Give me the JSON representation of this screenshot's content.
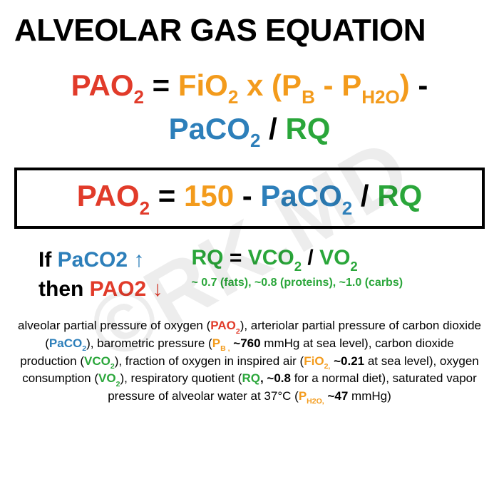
{
  "colors": {
    "red": "#e13b2a",
    "orange": "#f39b1c",
    "blue": "#2d7fba",
    "green": "#2aa63a",
    "black": "#000000",
    "background": "#ffffff",
    "watermark": "rgba(0,0,0,0.07)"
  },
  "watermark": "©RK.MD",
  "title": "ALVEOLAR GAS EQUATION",
  "equation_full": {
    "pao2": {
      "text": "PAO",
      "sub": "2",
      "color": "red"
    },
    "eq": {
      "text": " = ",
      "color": "black"
    },
    "fio2": {
      "text": "FiO",
      "sub": "2",
      "color": "orange"
    },
    "mult": {
      "text": " x ",
      "color": "orange"
    },
    "paren_open": {
      "text": "(",
      "color": "orange"
    },
    "pb": {
      "text": "P",
      "sub": "B",
      "color": "orange"
    },
    "minus": {
      "text": " - ",
      "color": "orange"
    },
    "ph2o": {
      "text": "P",
      "sub": "H2O",
      "color": "orange"
    },
    "paren_close": {
      "text": ")",
      "color": "orange"
    },
    "minus_outer": {
      "text": "  -",
      "color": "black"
    },
    "paco2": {
      "text": "PaCO",
      "sub": "2",
      "color": "blue"
    },
    "div": {
      "text": " / ",
      "color": "black"
    },
    "rq": {
      "text": "RQ",
      "color": "green"
    }
  },
  "equation_simple": {
    "pao2": {
      "text": "PAO",
      "sub": "2",
      "color": "red"
    },
    "eq": {
      "text": " = ",
      "color": "black"
    },
    "num": {
      "text": "150",
      "color": "orange"
    },
    "minus": {
      "text": " - ",
      "color": "black"
    },
    "paco2": {
      "text": "PaCO",
      "sub": "2",
      "color": "blue"
    },
    "div": {
      "text": " / ",
      "color": "black"
    },
    "rq": {
      "text": "RQ",
      "color": "green"
    }
  },
  "relation": {
    "line1_pre": "If ",
    "line1_term": "PaCO2",
    "line1_arrow": " ↑",
    "line2_pre": "then ",
    "line2_term": "PAO2",
    "line2_arrow": " ↓"
  },
  "rq": {
    "label": "RQ",
    "eq": " = ",
    "vco2": {
      "text": "VCO",
      "sub": "2"
    },
    "div": " / ",
    "vo2": {
      "text": "VO",
      "sub": "2"
    },
    "note": "~ 0.7 (fats), ~0.8 (proteins), ~1.0 (carbs)"
  },
  "glossary": {
    "t1": "alveolar partial pressure of oxygen (",
    "pao2": {
      "text": "PAO",
      "sub": "2"
    },
    "t2": "), arteriolar partial pressure of carbon dioxide (",
    "paco2": {
      "text": "PaCO",
      "sub": "2"
    },
    "t3": "), barometric pressure (",
    "pb": {
      "text": "P",
      "sub": "B ,"
    },
    "pb_val": " ~760",
    "t4": " mmHg at sea level), carbon dioxide production (",
    "vco2": {
      "text": "VCO",
      "sub": "2"
    },
    "t5": "), fraction of oxygen in inspired air (",
    "fio2": {
      "text": "FiO",
      "sub": "2,"
    },
    "fio2_val": " ~0.21",
    "t6": " at sea level), oxygen consumption (",
    "vo2": {
      "text": "VO",
      "sub": "2"
    },
    "t7": "), respiratory quotient (",
    "rq": "RQ",
    "rq_val": ", ~0.8",
    "t8": " for a normal diet), saturated vapor pressure of alveolar water at 37°C (",
    "ph2o": {
      "text": "P",
      "sub": "H2O,"
    },
    "ph2o_val": " ~47",
    "t9": " mmHg)"
  }
}
